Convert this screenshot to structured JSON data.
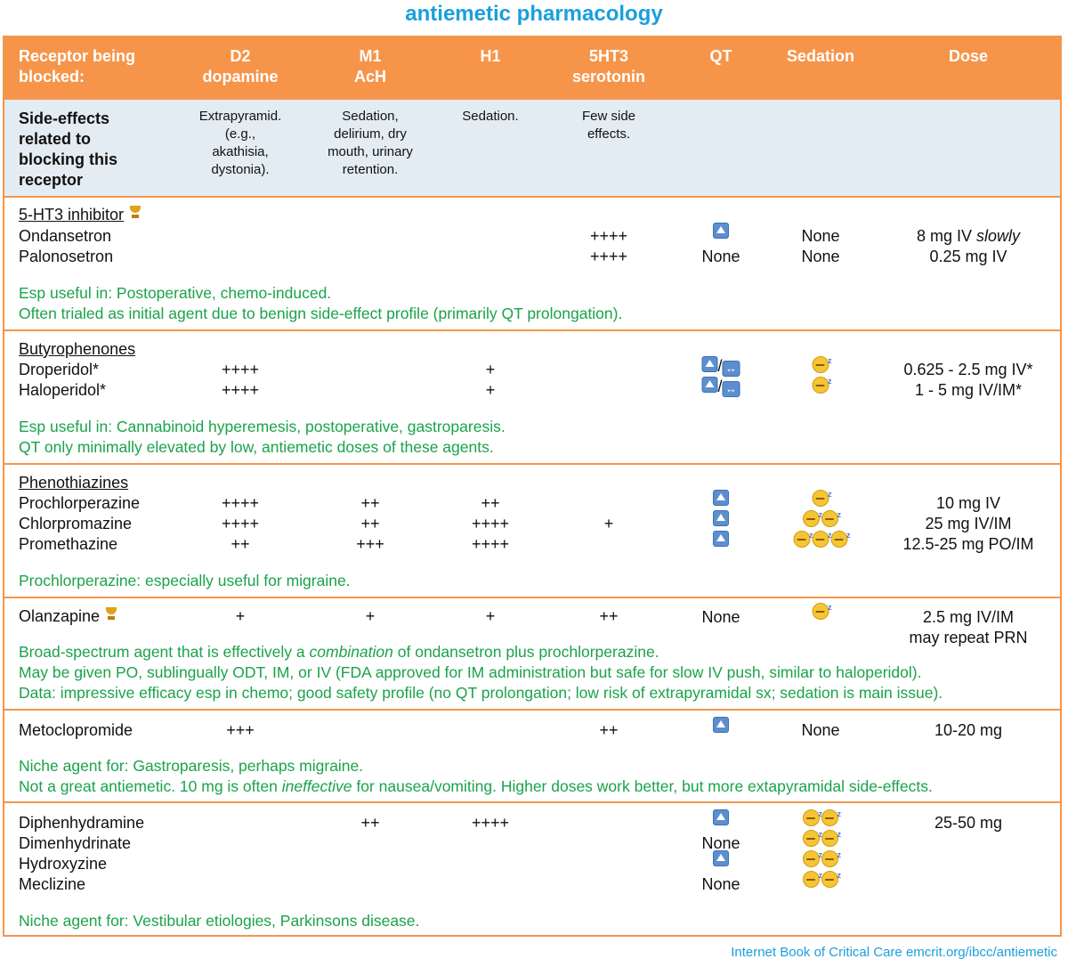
{
  "title": "antiemetic pharmacology",
  "header": {
    "receptor": [
      "Receptor being",
      "blocked:"
    ],
    "d2": [
      "D2",
      "dopamine"
    ],
    "m1": [
      "M1",
      "AcH"
    ],
    "h1": "H1",
    "ht3": [
      "5HT3",
      "serotonin"
    ],
    "qt": "QT",
    "sedation": "Sedation",
    "dose": "Dose"
  },
  "side_effects": {
    "label": [
      "Side-effects",
      "related to",
      "blocking this",
      "receptor"
    ],
    "d2": [
      "Extrapyramid.",
      "(e.g.,",
      "akathisia,",
      "dystonia)."
    ],
    "m1": [
      "Sedation,",
      "delirium, dry",
      "mouth, urinary",
      "retention."
    ],
    "h1": "Sedation.",
    "ht3": [
      "Few side",
      "effects."
    ]
  },
  "g1": {
    "name": "5-HT3 inhibitor",
    "drugs": [
      "Ondansetron",
      "Palonosetron"
    ],
    "ht3": [
      "++++",
      "++++"
    ],
    "qt_none": "None",
    "sedation": [
      "None",
      "None"
    ],
    "dose1_a": "8 mg IV ",
    "dose1_b": "slowly",
    "dose2": "0.25 mg IV",
    "notes": [
      "Esp useful in: Postoperative, chemo-induced.",
      "Often trialed as initial agent due to benign side-effect profile (primarily QT prolongation)."
    ]
  },
  "g2": {
    "name": "Butyrophenones",
    "drugs": [
      "Droperidol*",
      "Haloperidol*"
    ],
    "d2": [
      "++++",
      "++++"
    ],
    "h1": [
      "+",
      "+"
    ],
    "slash": "/",
    "dose": [
      "0.625 - 2.5 mg IV*",
      "1 - 5 mg IV/IM*"
    ],
    "notes": [
      "Esp useful in: Cannabinoid hyperemesis, postoperative, gastroparesis.",
      "QT only minimally elevated by low, antiemetic doses of these agents."
    ]
  },
  "g3": {
    "name": "Phenothiazines",
    "drugs": [
      "Prochlorperazine",
      "Chlorpromazine",
      "Promethazine"
    ],
    "d2": [
      "++++",
      "++++",
      "++"
    ],
    "m1": [
      "++",
      "++",
      "+++"
    ],
    "h1": [
      "++",
      "++++",
      "++++"
    ],
    "ht3_chlor": "+",
    "dose": [
      "10 mg IV",
      "25 mg IV/IM",
      "12.5-25 mg PO/IM"
    ],
    "notes": [
      "Prochlorperazine: especially useful for migraine."
    ]
  },
  "g4": {
    "name": "Olanzapine",
    "d2": "+",
    "m1": "+",
    "h1": "+",
    "ht3": "++",
    "qt": "None",
    "dose": [
      "2.5 mg IV/IM",
      "may repeat PRN"
    ],
    "note1_a": "Broad-spectrum agent that is effectively a ",
    "note1_b": "combination",
    "note1_c": " of ondansetron plus prochlorperazine.",
    "notes": [
      "May be given PO, sublingually ODT, IM, or IV (FDA approved for IM administration but safe for slow IV push, similar to haloperidol).",
      "Data: impressive efficacy esp in chemo; good safety profile (no QT prolongation; low risk of extrapyramidal sx; sedation is main issue)."
    ]
  },
  "g5": {
    "name": "Metoclopromide",
    "d2": "+++",
    "ht3": "++",
    "sedation": "None",
    "dose": "10-20 mg",
    "note1": "Niche agent for: Gastroparesis, perhaps migraine.",
    "note2_a": "Not a great antiemetic. 10 mg is often ",
    "note2_b": "ineffective",
    "note2_c": " for nausea/vomiting. Higher doses work better, but more extapyramidal side-effects."
  },
  "g6": {
    "drugs": [
      "Diphenhydramine",
      "Dimenhydrinate",
      "Hydroxyzine",
      "Meclizine"
    ],
    "m1": "++",
    "h1": "++++",
    "qt_none": [
      "None",
      "None"
    ],
    "dose": "25-50 mg",
    "note": "Niche agent for: Vestibular etiologies, Parkinsons disease."
  },
  "footer": "Internet Book of Critical Care emcrit.org/ibcc/antiemetic",
  "colors": {
    "header": "#f6954a",
    "accent": "#1a9fdc",
    "note": "#1aa34a",
    "side": "#e3ecf2"
  }
}
